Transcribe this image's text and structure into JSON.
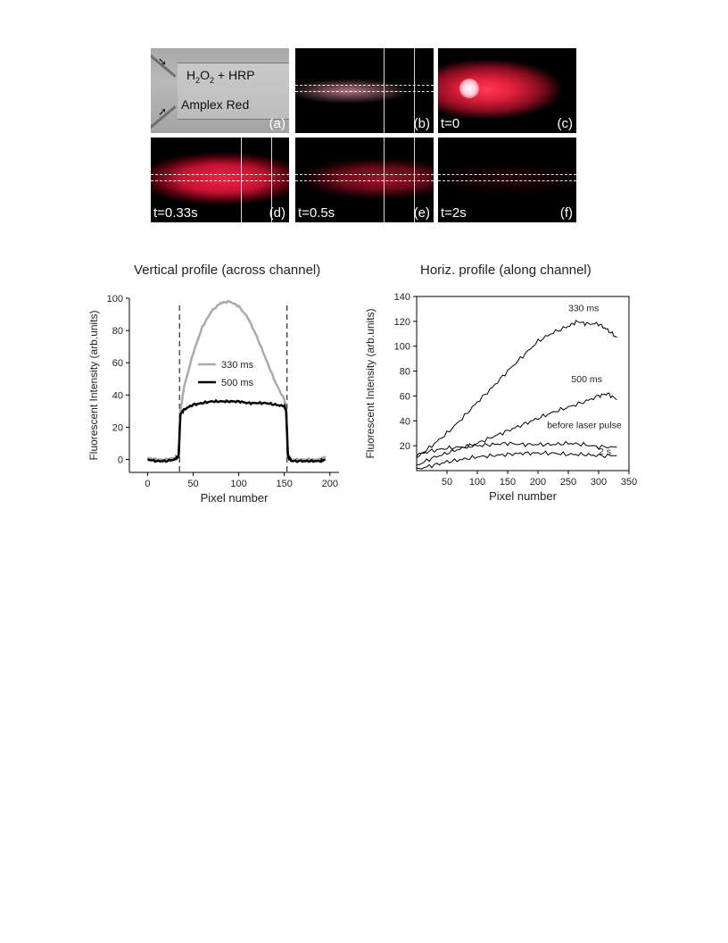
{
  "panels": [
    {
      "id": "a",
      "label": "(a)",
      "text1": "H",
      "sub1": "2",
      "text2": "O",
      "sub2": "2",
      "text3": " + HRP",
      "text4": "Amplex Red"
    },
    {
      "id": "b",
      "label": "(b)"
    },
    {
      "id": "c",
      "label": "(c)",
      "time": "t=0"
    },
    {
      "id": "d",
      "label": "(d)",
      "time": "t=0.33s"
    },
    {
      "id": "e",
      "label": "(e)",
      "time": "t=0.5s"
    },
    {
      "id": "f",
      "label": "(f)",
      "time": "t=2s"
    }
  ],
  "chart_data": [
    {
      "type": "line",
      "title": "Vertical profile (across channel)",
      "xlabel": "Pixel number",
      "ylabel": "Fluorescent Intensity (arb.units)",
      "xlim": [
        -20,
        210
      ],
      "ylim": [
        -8,
        100
      ],
      "xticks": [
        0,
        50,
        100,
        150,
        200
      ],
      "yticks": [
        0,
        20,
        40,
        60,
        80,
        100
      ],
      "vlines": [
        35,
        153
      ],
      "legend": "center",
      "series": [
        {
          "name": "330 ms",
          "color": "#aaaaaa",
          "x": [
            0,
            10,
            20,
            30,
            34,
            36,
            40,
            50,
            60,
            70,
            80,
            90,
            100,
            110,
            120,
            130,
            140,
            150,
            152,
            154,
            158,
            170,
            180,
            190,
            195
          ],
          "y": [
            1,
            0,
            0,
            1,
            2,
            30,
            45,
            66,
            82,
            92,
            97,
            98,
            95,
            88,
            76,
            62,
            48,
            37,
            30,
            3,
            0,
            0,
            0,
            0,
            2
          ]
        },
        {
          "name": "500 ms",
          "color": "#000000",
          "x": [
            0,
            10,
            20,
            30,
            34,
            36,
            40,
            50,
            60,
            70,
            80,
            90,
            100,
            110,
            120,
            130,
            140,
            150,
            152,
            154,
            158,
            170,
            180,
            190,
            195
          ],
          "y": [
            0,
            -1,
            -1,
            0,
            2,
            28,
            31,
            34,
            35,
            36,
            36,
            36,
            36,
            35,
            35,
            35,
            34,
            33,
            30,
            2,
            -1,
            -1,
            -1,
            -1,
            0
          ]
        }
      ]
    },
    {
      "type": "line",
      "title": "Horiz. profile (along channel)",
      "xlabel": "Pixel number",
      "ylabel": "Fluorescent Intensity (arb.units)",
      "xlim": [
        0,
        350
      ],
      "ylim": [
        0,
        140
      ],
      "xticks": [
        50,
        100,
        150,
        200,
        250,
        300,
        350
      ],
      "yticks": [
        20,
        40,
        60,
        80,
        100,
        120,
        140
      ],
      "series": [
        {
          "name": "330 ms",
          "color": "#000000",
          "x": [
            0,
            25,
            50,
            75,
            100,
            125,
            150,
            175,
            200,
            225,
            250,
            265,
            280,
            300,
            315,
            330
          ],
          "y": [
            10,
            20,
            30,
            42,
            55,
            67,
            80,
            92,
            104,
            111,
            116,
            120,
            118,
            118,
            113,
            107
          ]
        },
        {
          "name": "500 ms",
          "color": "#000000",
          "x": [
            0,
            25,
            50,
            75,
            100,
            125,
            150,
            175,
            200,
            225,
            250,
            275,
            300,
            315,
            330
          ],
          "y": [
            4,
            10,
            14,
            18,
            22,
            27,
            32,
            37,
            42,
            47,
            51,
            55,
            60,
            62,
            57
          ]
        },
        {
          "name": "before laser pulse",
          "color": "#000000",
          "x": [
            0,
            25,
            50,
            75,
            100,
            125,
            150,
            175,
            200,
            225,
            250,
            275,
            300,
            330
          ],
          "y": [
            13,
            16,
            18,
            19,
            20,
            21,
            22,
            21,
            21,
            21,
            22,
            21,
            19,
            19
          ]
        },
        {
          "name": "2 s",
          "color": "#000000",
          "x": [
            0,
            25,
            50,
            75,
            100,
            125,
            150,
            175,
            200,
            225,
            250,
            275,
            300,
            330
          ],
          "y": [
            1,
            4,
            7,
            9,
            11,
            12,
            13,
            14,
            14,
            14,
            13,
            13,
            12,
            12
          ]
        }
      ],
      "annotations": [
        "330 ms",
        "500 ms",
        "before laser pulse",
        "2 s"
      ]
    }
  ]
}
